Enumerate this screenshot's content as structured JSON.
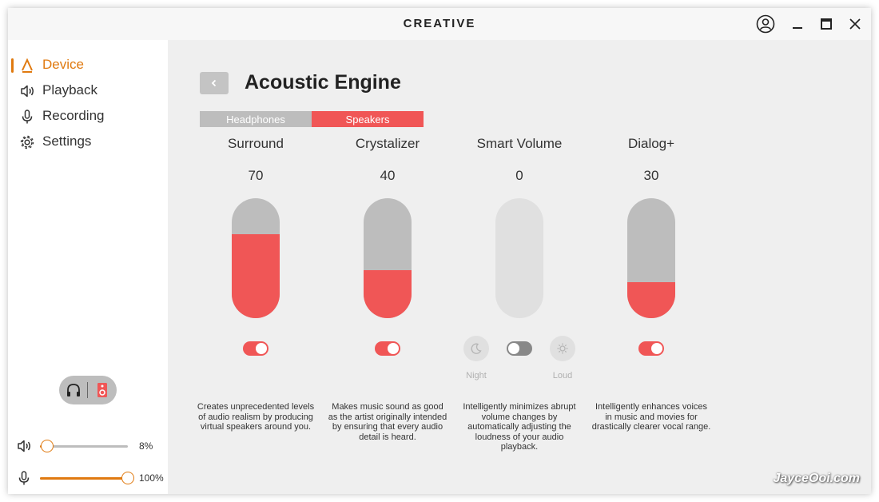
{
  "app": {
    "brand": "CREATIVE"
  },
  "sidebar": {
    "items": [
      {
        "label": "Device",
        "icon": "creative-logo-icon",
        "active": true
      },
      {
        "label": "Playback",
        "icon": "speaker-icon",
        "active": false
      },
      {
        "label": "Recording",
        "icon": "microphone-icon",
        "active": false
      },
      {
        "label": "Settings",
        "icon": "gear-icon",
        "active": false
      }
    ],
    "output_switch": {
      "options": [
        "headphones-icon",
        "speaker-icon"
      ],
      "selected": "speaker-icon"
    },
    "speaker_volume": {
      "value": 8,
      "label": "8%"
    },
    "mic_volume": {
      "value": 100,
      "label": "100%"
    }
  },
  "main": {
    "title": "Acoustic Engine",
    "tabs": [
      {
        "label": "Headphones",
        "active": false
      },
      {
        "label": "Speakers",
        "active": true
      }
    ],
    "effects": [
      {
        "name": "Surround",
        "value": "70",
        "level": 70,
        "enabled": true,
        "description": "Creates unprecedented levels of audio realism by producing virtual speakers around you."
      },
      {
        "name": "Crystalizer",
        "value": "40",
        "level": 40,
        "enabled": true,
        "description": "Makes music sound as good as the artist originally intended by ensuring that every audio detail is heard."
      },
      {
        "name": "Smart Volume",
        "value": "0",
        "level": 0,
        "enabled": false,
        "modes": {
          "night": "Night",
          "loud": "Loud"
        },
        "description": "Intelligently minimizes abrupt volume changes by automatically adjusting the loudness of your audio playback."
      },
      {
        "name": "Dialog+",
        "value": "30",
        "level": 30,
        "enabled": true,
        "description": "Intelligently enhances voices in music and movies for drastically clearer vocal range."
      }
    ]
  },
  "watermark": "JayceOoi.com",
  "colors": {
    "accent": "#e07a10",
    "effect_red": "#f05656",
    "track_gray": "#bdbdbd"
  }
}
